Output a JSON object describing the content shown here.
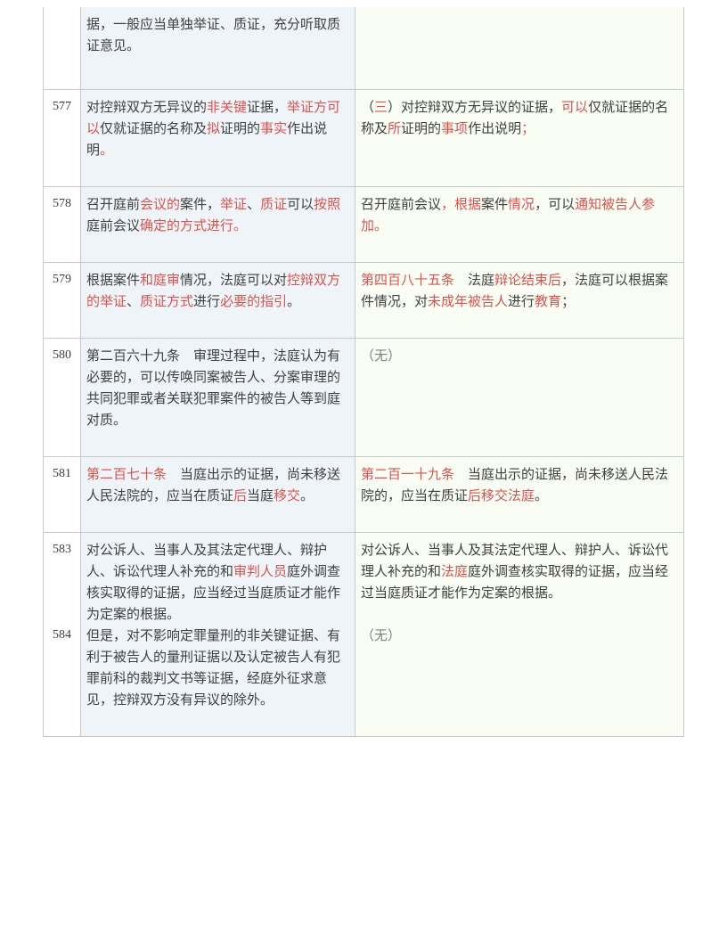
{
  "colors": {
    "border": "#c8c8c8",
    "left_bg": "#eff4f9",
    "right_bg": "#fafdf4",
    "text": "#404040",
    "highlight": "#d9534f",
    "grey": "#808080"
  },
  "font_size": 15,
  "rows": [
    {
      "num": "",
      "left": [
        {
          "t": "据，一般应当单独举证、质证，充分听取质证意见。",
          "h": false
        }
      ],
      "right": []
    },
    {
      "num": "577",
      "left": [
        {
          "t": "对控辩双方无异议的",
          "h": false
        },
        {
          "t": "非关键",
          "h": true
        },
        {
          "t": "证据，",
          "h": false
        },
        {
          "t": "举证方可以",
          "h": true
        },
        {
          "t": "仅就证据的名称及",
          "h": false
        },
        {
          "t": "拟",
          "h": true
        },
        {
          "t": "证明的",
          "h": false
        },
        {
          "t": "事实",
          "h": true
        },
        {
          "t": "作出说明",
          "h": false
        },
        {
          "t": "。",
          "h": true
        }
      ],
      "right": [
        {
          "t": "（",
          "h": false
        },
        {
          "t": "三",
          "h": true
        },
        {
          "t": "）对控辩双方无异议的证据，",
          "h": false
        },
        {
          "t": "可以",
          "h": true
        },
        {
          "t": "仅就证据的名称及",
          "h": false
        },
        {
          "t": "所",
          "h": true
        },
        {
          "t": "证明的",
          "h": false
        },
        {
          "t": "事项",
          "h": true
        },
        {
          "t": "作出说明",
          "h": false
        },
        {
          "t": "；",
          "h": true
        }
      ]
    },
    {
      "num": "578",
      "left": [
        {
          "t": "召开庭前",
          "h": false
        },
        {
          "t": "会议的",
          "h": true
        },
        {
          "t": "案件，",
          "h": false
        },
        {
          "t": "举证",
          "h": true
        },
        {
          "t": "、",
          "h": false
        },
        {
          "t": "质证",
          "h": true
        },
        {
          "t": "可以",
          "h": false
        },
        {
          "t": "按照",
          "h": true
        },
        {
          "t": "庭前会议",
          "h": false
        },
        {
          "t": "确定的方式进行。",
          "h": true
        }
      ],
      "right": [
        {
          "t": "召开庭前会议",
          "h": false
        },
        {
          "t": "，根据",
          "h": true
        },
        {
          "t": "案件",
          "h": false
        },
        {
          "t": "情况",
          "h": true
        },
        {
          "t": "，可以",
          "h": false
        },
        {
          "t": "通知被告人参加。",
          "h": true
        }
      ]
    },
    {
      "num": "579",
      "left": [
        {
          "t": "根据案件",
          "h": false
        },
        {
          "t": "和庭审",
          "h": true
        },
        {
          "t": "情况，法庭可以对",
          "h": false
        },
        {
          "t": "控辩双方的举证",
          "h": true
        },
        {
          "t": "、",
          "h": false
        },
        {
          "t": "质证方式",
          "h": true
        },
        {
          "t": "进行",
          "h": false
        },
        {
          "t": "必要的指引",
          "h": true
        },
        {
          "t": "。",
          "h": false
        }
      ],
      "right": [
        {
          "t": "第四百八十五条",
          "h": true
        },
        {
          "t": "　法庭",
          "h": false
        },
        {
          "t": "辩论结束后",
          "h": true
        },
        {
          "t": "，法庭可以根据案件情况，对",
          "h": false
        },
        {
          "t": "未成年被告人",
          "h": true
        },
        {
          "t": "进行",
          "h": false
        },
        {
          "t": "教育",
          "h": true
        },
        {
          "t": "；",
          "h": false
        }
      ]
    },
    {
      "num": "580",
      "left": [
        {
          "t": "第二百六十九条　审理过程中，法庭认为有必要的，可以传唤同案被告人、分案审理的共同犯罪或者关联犯罪案件的被告人等到庭对质。",
          "h": false
        }
      ],
      "right": [
        {
          "t": "（无）",
          "h": false,
          "grey": true
        }
      ]
    },
    {
      "num": "581",
      "left": [
        {
          "t": "第二百七十条",
          "h": true
        },
        {
          "t": "　当庭出示的证据，尚未移送人民法院的，应当在质证",
          "h": false
        },
        {
          "t": "后",
          "h": true
        },
        {
          "t": "当庭",
          "h": false
        },
        {
          "t": "移交",
          "h": true
        },
        {
          "t": "。",
          "h": false
        }
      ],
      "right": [
        {
          "t": "第二百一十九条",
          "h": true
        },
        {
          "t": "　当庭出示的证据，尚未移送人民法院的，应当在质证",
          "h": false
        },
        {
          "t": "后移交法庭",
          "h": true
        },
        {
          "t": "。",
          "h": false
        }
      ]
    },
    {
      "num": "583",
      "left": [
        {
          "t": "对公诉人、当事人及其法定代理人、辩护人、诉讼代理人补充的和",
          "h": false
        },
        {
          "t": "审判人员",
          "h": true
        },
        {
          "t": "庭外调查核实取得的证据，应当经过当庭质证才能作为定案的根据。",
          "h": false
        }
      ],
      "right": [
        {
          "t": "对公诉人、当事人及其法定代理人、辩护人、诉讼代理人补充的和",
          "h": false
        },
        {
          "t": "法庭",
          "h": true
        },
        {
          "t": "庭外调查核实取得的证据，应当经过当庭质证才能作为定案的根据。",
          "h": false
        }
      ]
    },
    {
      "num": "584",
      "left": [
        {
          "t": "但是，对不影响定罪量刑的非关键证据、有利于被告人的量刑证据以及认定被告人有犯罪前科的裁判文书等证据，经庭外征求意见，控辩双方没有异议的除外。",
          "h": false
        }
      ],
      "right": [
        {
          "t": "（无）",
          "h": false,
          "grey": true
        }
      ]
    }
  ]
}
